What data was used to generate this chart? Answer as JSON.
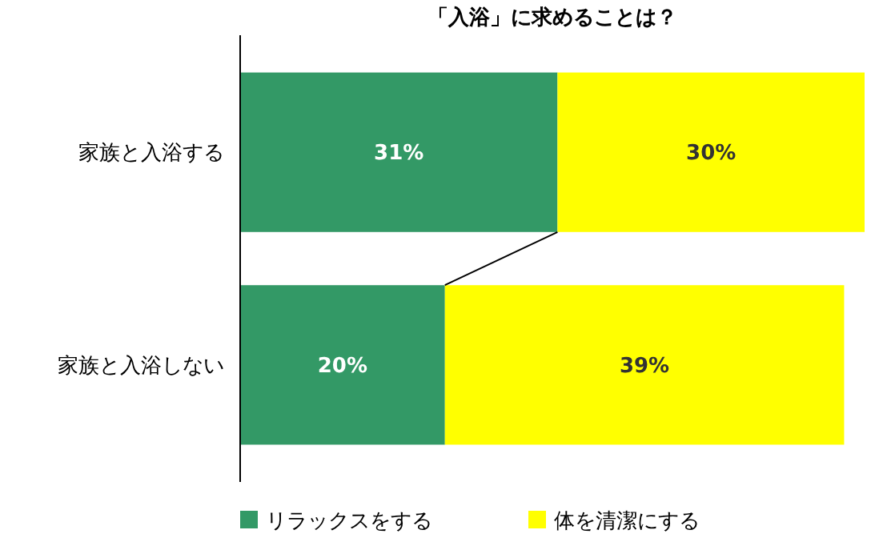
{
  "chart_data": {
    "type": "bar",
    "orientation": "horizontal",
    "stacked": true,
    "title": "「入浴」に求めることは？",
    "categories": [
      "家族と入浴する",
      "家族と入浴しない"
    ],
    "series": [
      {
        "name": "リラックスをする",
        "color": "#339966",
        "values": [
          31,
          20
        ],
        "value_labels": [
          "31%",
          "20%"
        ]
      },
      {
        "name": "体を清潔にする",
        "color": "#ffff00",
        "values": [
          30,
          39
        ],
        "value_labels": [
          "30%",
          "39%"
        ]
      }
    ],
    "legend": "bottom"
  }
}
